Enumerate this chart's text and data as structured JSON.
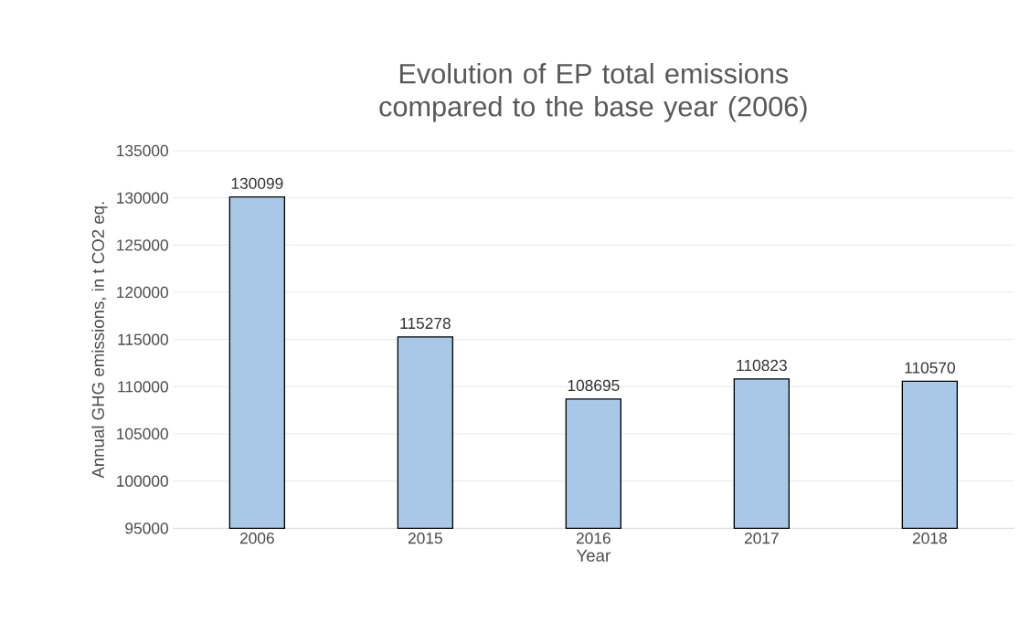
{
  "chart_data": {
    "type": "bar",
    "title": "Evolution of EP total emissions compared to the base year (2006)",
    "xlabel": "Year",
    "ylabel": "Annual GHG emissions, in t CO2 eq.",
    "categories": [
      "2006",
      "2015",
      "2016",
      "2017",
      "2018"
    ],
    "values": [
      130099,
      115278,
      108695,
      110823,
      110570
    ],
    "color": "#a9c8e8",
    "ylim": [
      95000,
      135000
    ],
    "yticks": [
      95000,
      100000,
      105000,
      110000,
      115000,
      120000,
      125000,
      130000,
      135000
    ],
    "grid": "y",
    "data_labels": true
  }
}
